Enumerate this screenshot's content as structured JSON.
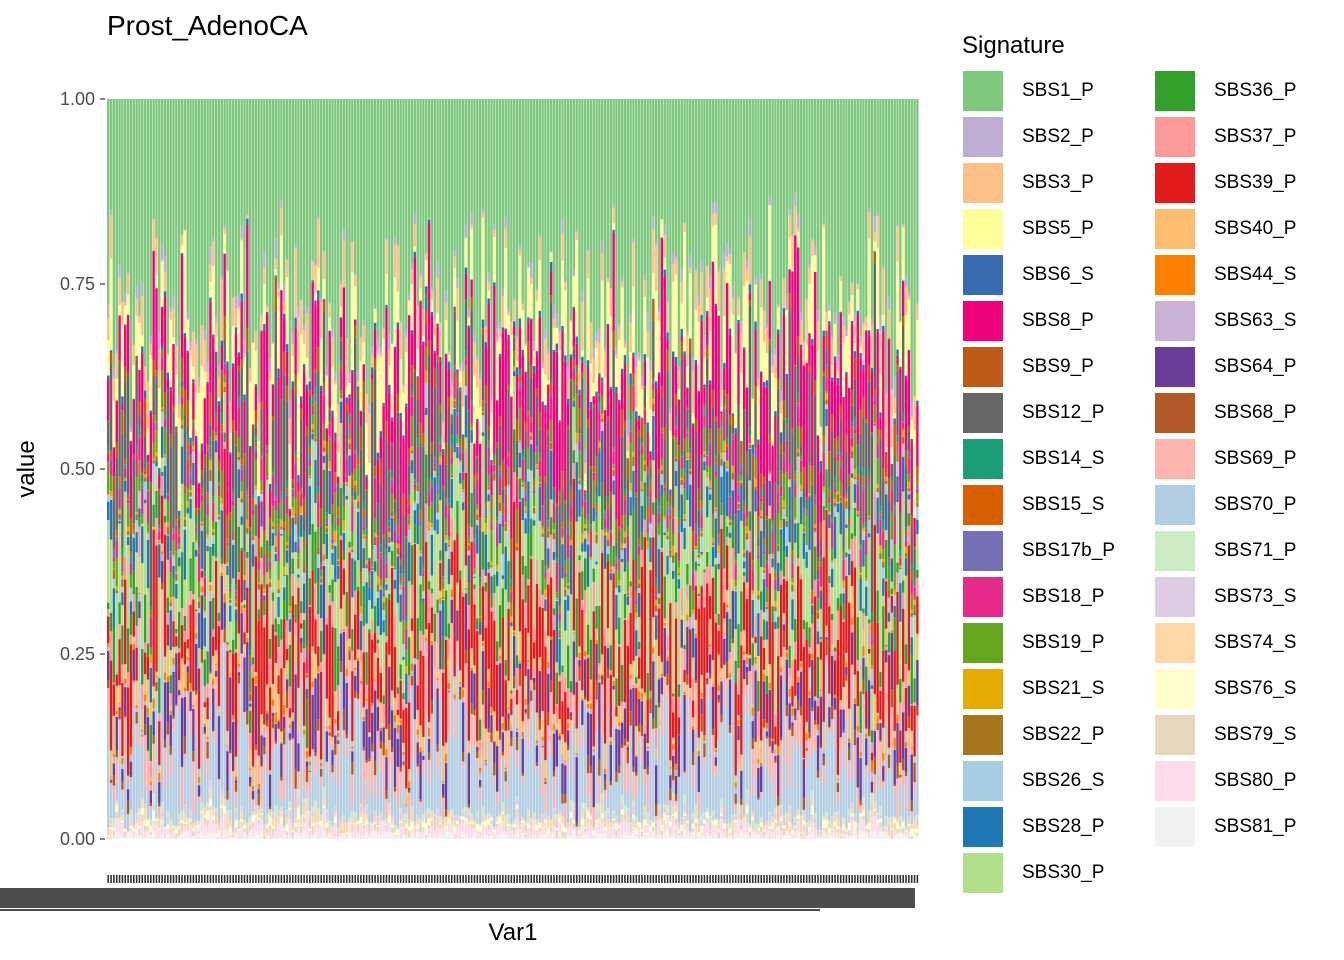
{
  "chart_data": {
    "type": "bar",
    "stacked": true,
    "title": "Prost_AdenoCA",
    "xlabel": "Var1",
    "ylabel": "value",
    "ylim": [
      0,
      1
    ],
    "yticks": [
      "0.00",
      "0.25",
      "0.50",
      "0.75",
      "1.00"
    ],
    "n_samples": 286,
    "legend_title": "Signature",
    "legend_position": "right",
    "series": [
      {
        "name": "SBS1_P",
        "color": "#7FC97F",
        "mean_share": 0.27
      },
      {
        "name": "SBS2_P",
        "color": "#BEAED4",
        "mean_share": 0.01
      },
      {
        "name": "SBS3_P",
        "color": "#FDC086",
        "mean_share": 0.03
      },
      {
        "name": "SBS5_P",
        "color": "#FFFF99",
        "mean_share": 0.06
      },
      {
        "name": "SBS6_S",
        "color": "#386CB0",
        "mean_share": 0.005
      },
      {
        "name": "SBS8_P",
        "color": "#F0027F",
        "mean_share": 0.1
      },
      {
        "name": "SBS9_P",
        "color": "#BF5B17",
        "mean_share": 0.015
      },
      {
        "name": "SBS12_P",
        "color": "#666666",
        "mean_share": 0.08
      },
      {
        "name": "SBS14_S",
        "color": "#1B9E77",
        "mean_share": 0.005
      },
      {
        "name": "SBS15_S",
        "color": "#D95F02",
        "mean_share": 0.005
      },
      {
        "name": "SBS17b_P",
        "color": "#7570B3",
        "mean_share": 0.005
      },
      {
        "name": "SBS18_P",
        "color": "#E7298A",
        "mean_share": 0.02
      },
      {
        "name": "SBS19_P",
        "color": "#66A61E",
        "mean_share": 0.02
      },
      {
        "name": "SBS21_S",
        "color": "#E6AB02",
        "mean_share": 0.005
      },
      {
        "name": "SBS22_P",
        "color": "#A6761D",
        "mean_share": 0.005
      },
      {
        "name": "SBS26_S",
        "color": "#A6CEE3",
        "mean_share": 0.01
      },
      {
        "name": "SBS28_P",
        "color": "#1F78B4",
        "mean_share": 0.03
      },
      {
        "name": "SBS30_P",
        "color": "#B2DF8A",
        "mean_share": 0.06
      },
      {
        "name": "SBS36_P",
        "color": "#33A02C",
        "mean_share": 0.03
      },
      {
        "name": "SBS37_P",
        "color": "#FB9A99",
        "mean_share": 0.02
      },
      {
        "name": "SBS39_P",
        "color": "#E31A1C",
        "mean_share": 0.09
      },
      {
        "name": "SBS40_P",
        "color": "#FDBF6F",
        "mean_share": 0.02
      },
      {
        "name": "SBS44_S",
        "color": "#FF7F00",
        "mean_share": 0.005
      },
      {
        "name": "SBS63_S",
        "color": "#CAB2D6",
        "mean_share": 0.005
      },
      {
        "name": "SBS64_P",
        "color": "#6A3D9A",
        "mean_share": 0.04
      },
      {
        "name": "SBS68_P",
        "color": "#B15928",
        "mean_share": 0.01
      },
      {
        "name": "SBS69_P",
        "color": "#FBB4AE",
        "mean_share": 0.03
      },
      {
        "name": "SBS70_P",
        "color": "#B3CDE3",
        "mean_share": 0.09
      },
      {
        "name": "SBS71_P",
        "color": "#CCEBC5",
        "mean_share": 0.005
      },
      {
        "name": "SBS73_S",
        "color": "#DECBE4",
        "mean_share": 0.005
      },
      {
        "name": "SBS74_S",
        "color": "#FED9A6",
        "mean_share": 0.005
      },
      {
        "name": "SBS76_S",
        "color": "#FFFFCC",
        "mean_share": 0.005
      },
      {
        "name": "SBS79_S",
        "color": "#E5D8BD",
        "mean_share": 0.005
      },
      {
        "name": "SBS80_P",
        "color": "#FDDAEC",
        "mean_share": 0.01
      },
      {
        "name": "SBS81_P",
        "color": "#F2F2F2",
        "mean_share": 0.005
      }
    ]
  }
}
